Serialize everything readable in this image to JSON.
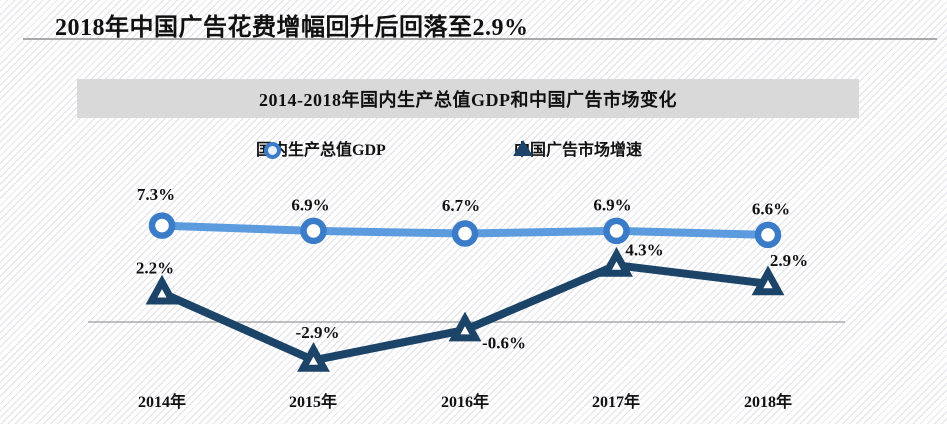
{
  "header": {
    "title": "2018年中国广告花费增幅回升后回落至2.9%"
  },
  "panel": {
    "title": "2014-2018年国内生产总值GDP和中国广告市场变化"
  },
  "colors": {
    "gdp_line": "#5c9cde",
    "gdp_marker_ring": "#3b7cc9",
    "ad_line": "#1c4468",
    "axis_line": "#9b9b9b",
    "panel_bg": "#d9d9d9",
    "label_text": "#111111"
  },
  "chart_data": {
    "type": "line",
    "title": "2014-2018年国内生产总值GDP和中国广告市场变化",
    "categories": [
      "2014年",
      "2015年",
      "2016年",
      "2017年",
      "2018年"
    ],
    "series": [
      {
        "name": "国内生产总值GDP",
        "values": [
          7.3,
          6.9,
          6.7,
          6.9,
          6.6
        ],
        "labels": [
          "7.3%",
          "6.9%",
          "6.7%",
          "6.9%",
          "6.6%"
        ],
        "color": "#5c9cde",
        "marker": "circle"
      },
      {
        "name": "中国广告市场增速",
        "values": [
          2.2,
          -2.9,
          -0.6,
          4.3,
          2.9
        ],
        "labels": [
          "2.2%",
          "-2.9%",
          "-0.6%",
          "4.3%",
          "2.9%"
        ],
        "color": "#1c4468",
        "marker": "triangle"
      }
    ],
    "ylim": [
      -4,
      8.5
    ],
    "zero_baseline": true,
    "grid": false,
    "legend_position": "top",
    "data_labels": true
  }
}
